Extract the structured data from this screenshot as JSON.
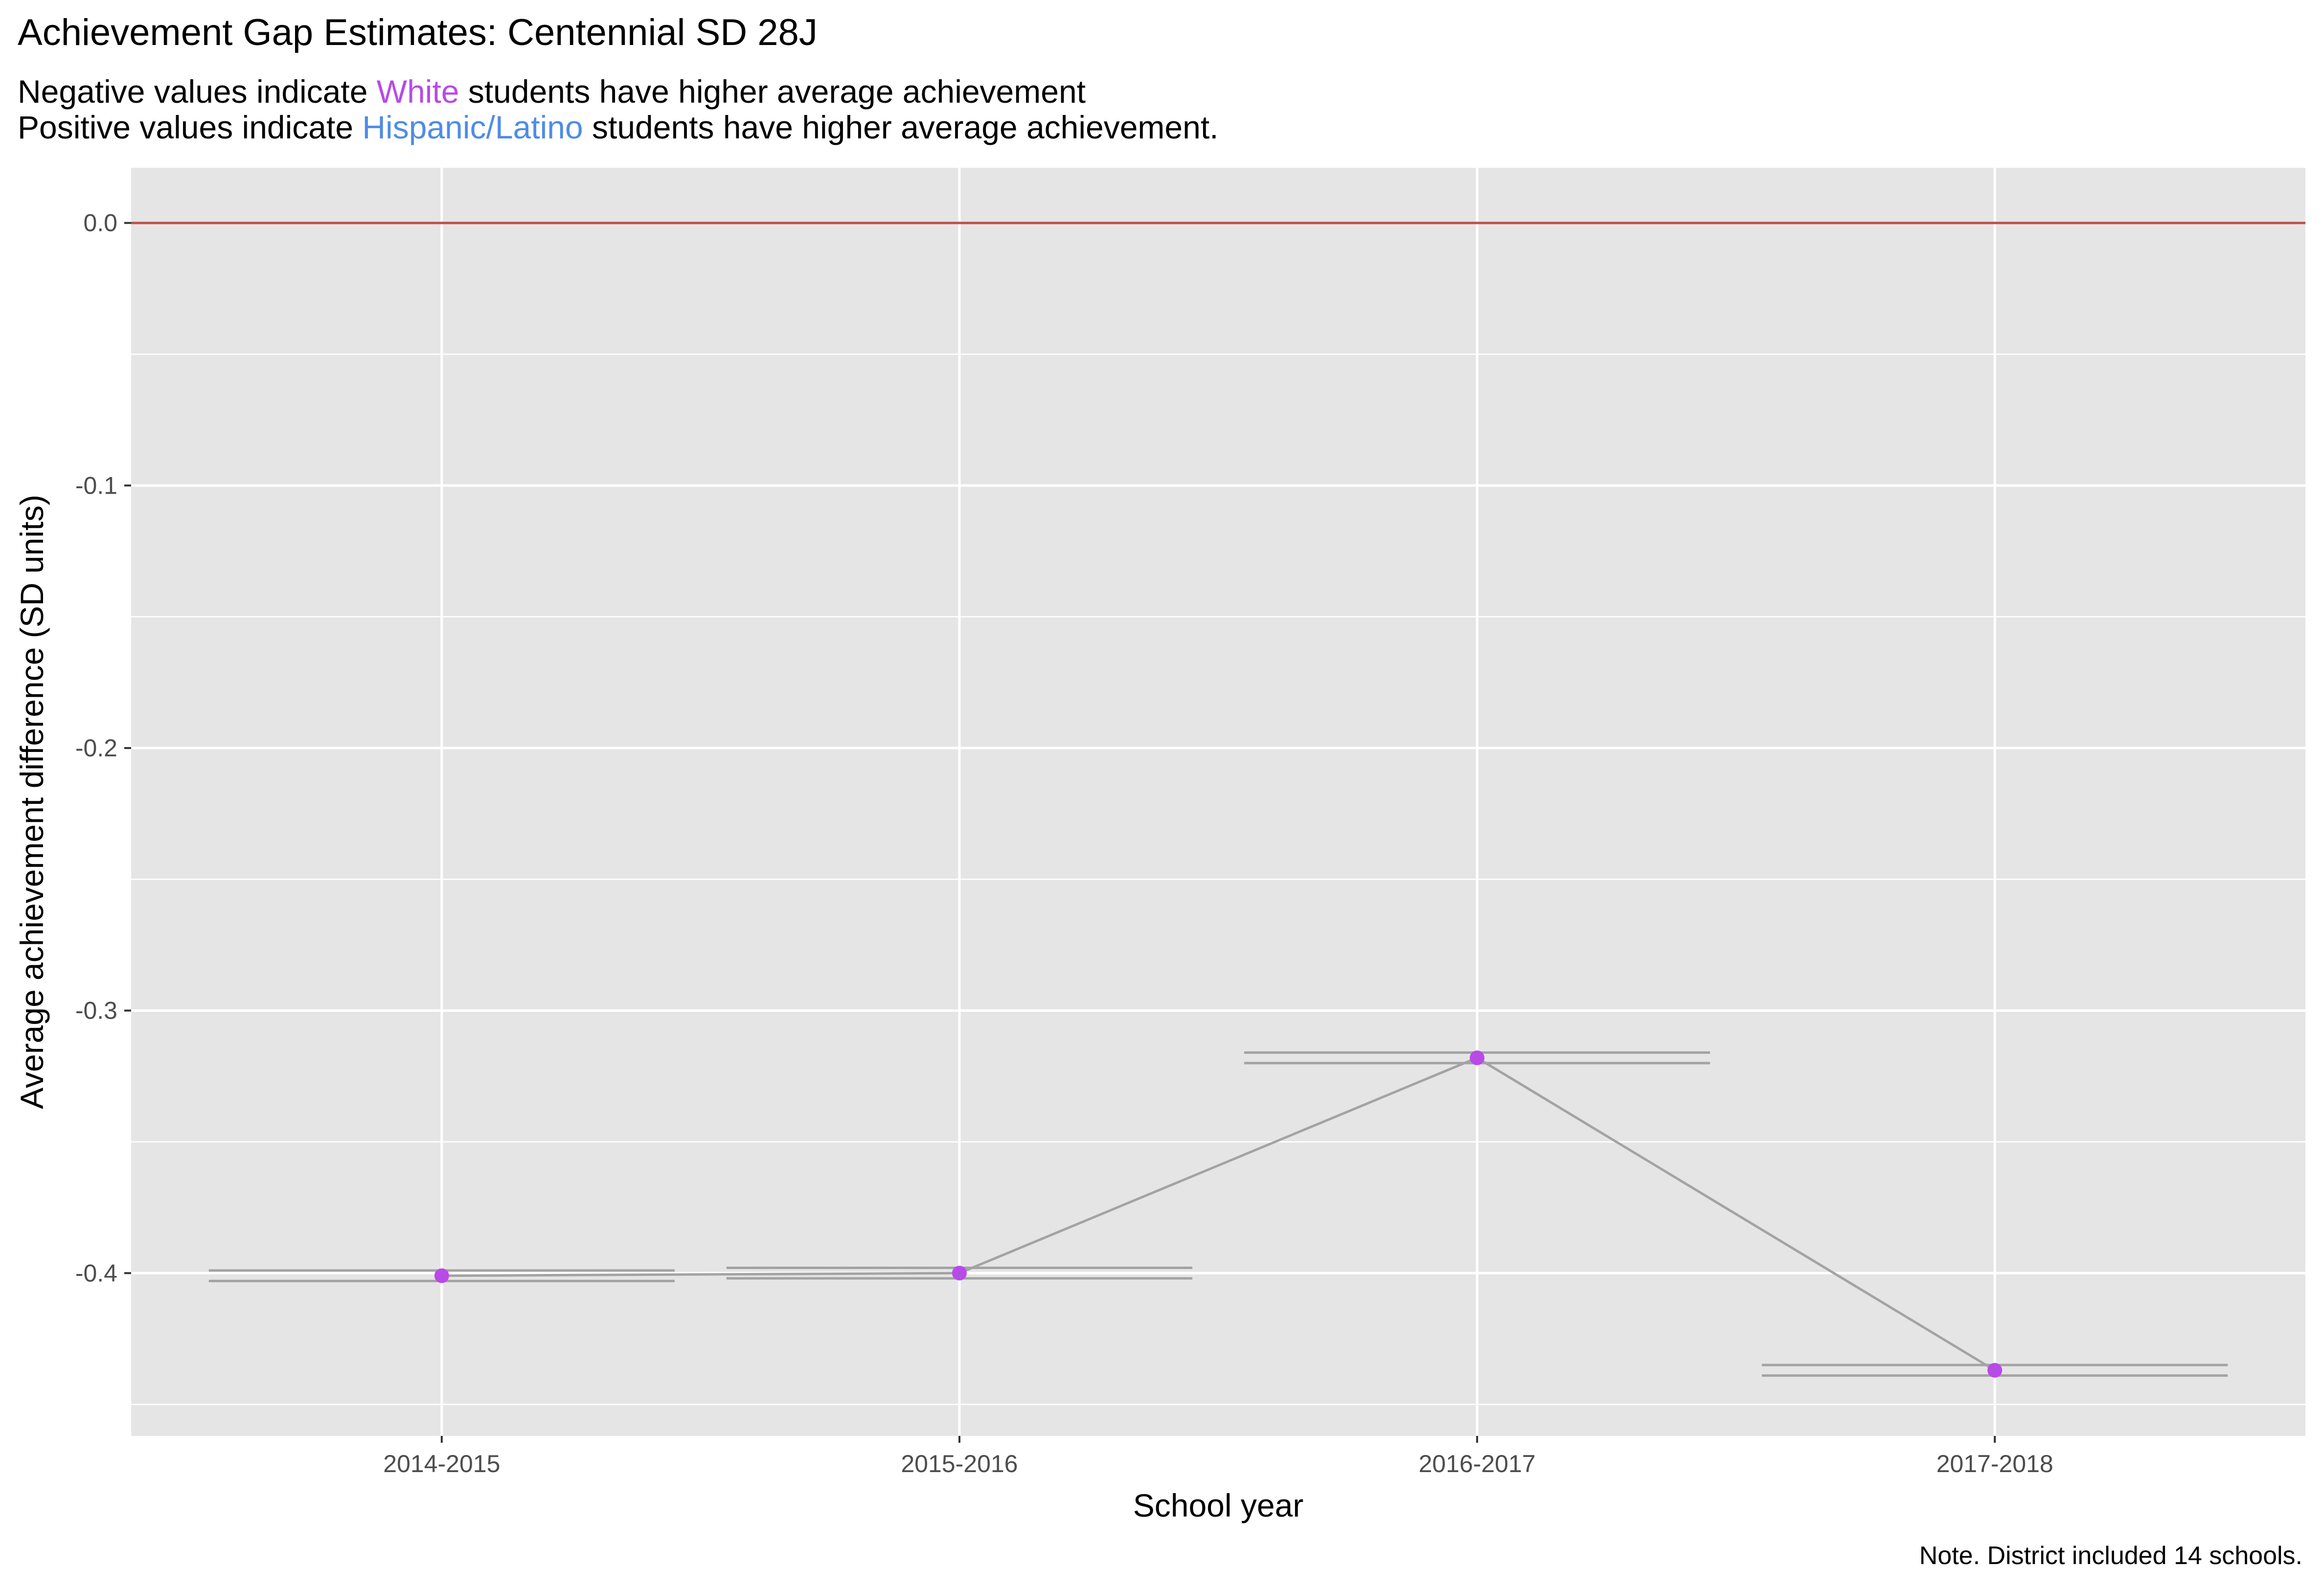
{
  "chart_data": {
    "type": "line",
    "title": "Achievement Gap Estimates: Centennial SD 28J",
    "subtitle_line1": {
      "prefix": "Negative values indicate ",
      "highlight": "White",
      "suffix": " students have higher average achievement"
    },
    "subtitle_line2": {
      "prefix": "Positive values indicate ",
      "highlight": "Hispanic/Latino",
      "suffix": " students have higher average achievement."
    },
    "xlabel": "School year",
    "ylabel": "Average achievement difference (SD units)",
    "caption": "Note. District included 14 schools.",
    "categories": [
      "2014-2015",
      "2015-2016",
      "2016-2017",
      "2017-2018"
    ],
    "series": [
      {
        "values": [
          -0.401,
          -0.4,
          -0.318,
          -0.437
        ],
        "ci_lower": [
          -0.403,
          -0.402,
          -0.32,
          -0.439
        ],
        "ci_upper": [
          -0.399,
          -0.398,
          -0.316,
          -0.435
        ]
      }
    ],
    "reference_line": 0.0,
    "ylim": [
      -0.462,
      0.021
    ],
    "yticks": [
      0.0,
      -0.1,
      -0.2,
      -0.3,
      -0.4
    ],
    "ytick_labels": [
      "0.0",
      "-0.1",
      "-0.2",
      "-0.3",
      "-0.4"
    ],
    "grid": true,
    "colors": {
      "panel": "#e5e5e5",
      "grid": "#ffffff",
      "point": "#b84ae8",
      "line": "#a3a3a3",
      "reference": "#c0504d",
      "white_text": "#b84ae8",
      "hispanic_text": "#4f8ce6"
    }
  }
}
